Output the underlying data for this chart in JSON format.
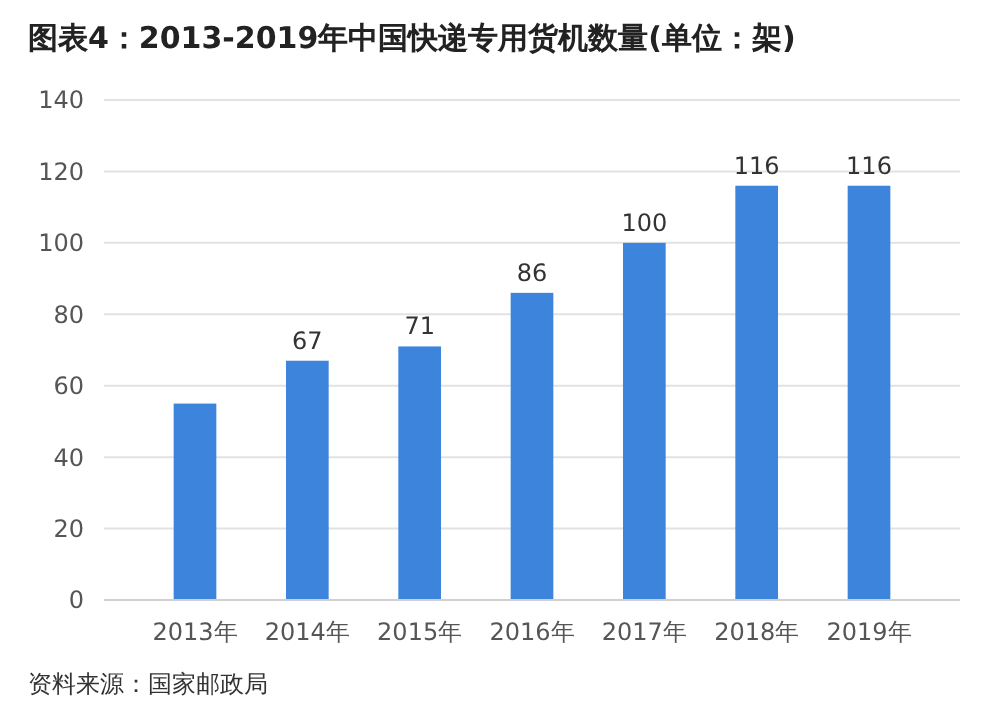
{
  "chart_data": {
    "type": "bar",
    "title": "图表4：2013-2019年中国快递专用货机数量(单位：架)",
    "categories": [
      "2013年",
      "2014年",
      "2015年",
      "2016年",
      "2017年",
      "2018年",
      "2019年"
    ],
    "values": [
      55,
      67,
      71,
      86,
      100,
      116,
      116
    ],
    "value_labels": [
      null,
      "67",
      "71",
      "86",
      "100",
      "116",
      "116"
    ],
    "color": "#3d85dc",
    "ylim": [
      0,
      140
    ],
    "yticks": [
      0,
      20,
      40,
      60,
      80,
      100,
      120,
      140
    ],
    "grid": "y",
    "annotations": [
      "资料来源：国家邮政局"
    ]
  }
}
